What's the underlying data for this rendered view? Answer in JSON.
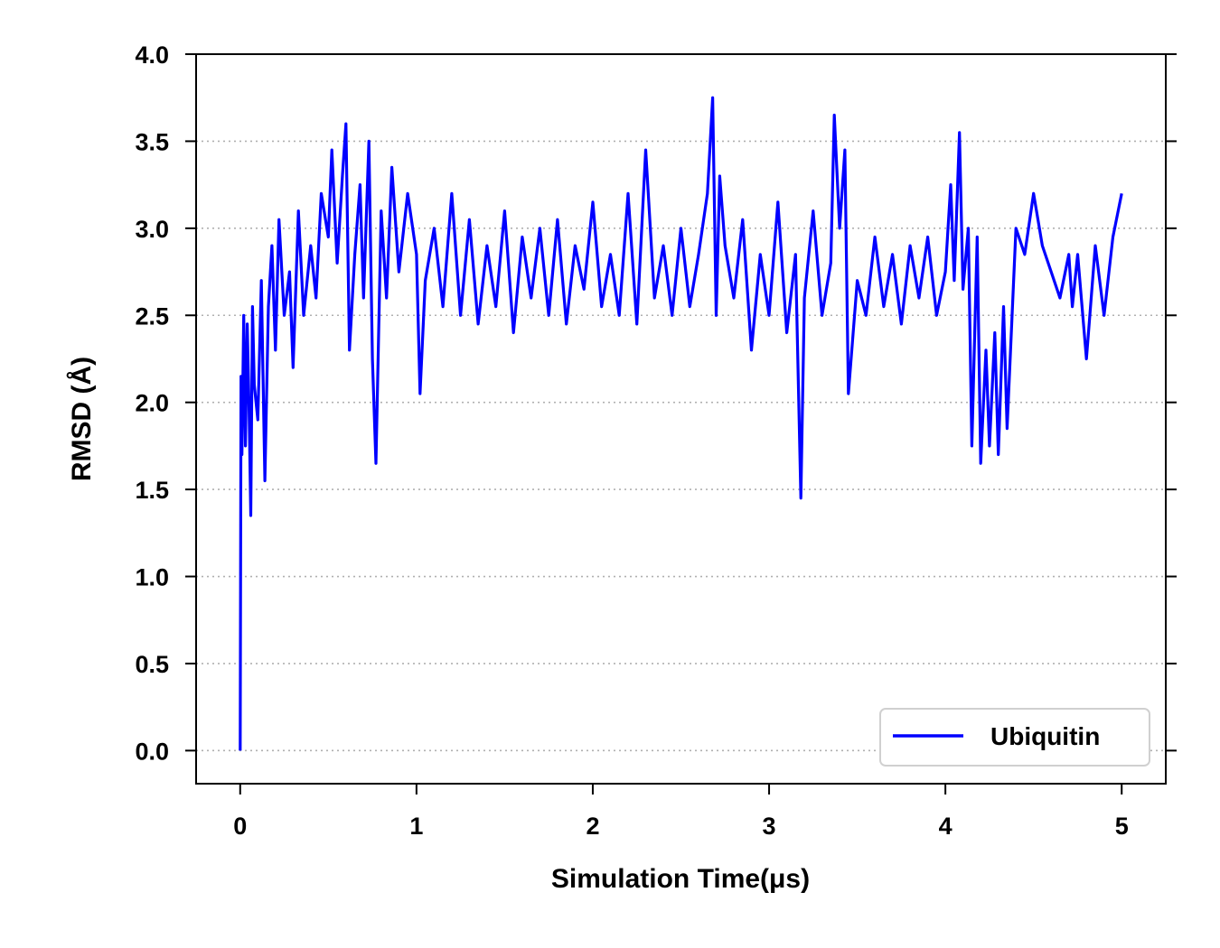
{
  "chart_data": {
    "type": "line",
    "title": "",
    "xlabel": "Simulation Time(μs)",
    "ylabel": "RMSD (Å)",
    "xlim": [
      -0.25,
      5.25
    ],
    "ylim": [
      -0.19,
      4.0
    ],
    "x_ticks": [
      0,
      1,
      2,
      3,
      4,
      5
    ],
    "x_tick_labels": [
      "0",
      "1",
      "2",
      "3",
      "4",
      "5"
    ],
    "y_ticks": [
      0.0,
      0.5,
      1.0,
      1.5,
      2.0,
      2.5,
      3.0,
      3.5,
      4.0
    ],
    "y_tick_labels": [
      "0.0",
      "0.5",
      "1.0",
      "1.5",
      "2.0",
      "2.5",
      "3.0",
      "3.5",
      "4.0"
    ],
    "grid": "y-dotted",
    "legend": {
      "position": "lower-right",
      "entries": [
        "Ubiquitin"
      ]
    },
    "series": [
      {
        "name": "Ubiquitin",
        "color": "#0000ff",
        "x": [
          0,
          0.005,
          0.01,
          0.02,
          0.03,
          0.04,
          0.05,
          0.06,
          0.07,
          0.08,
          0.1,
          0.12,
          0.14,
          0.16,
          0.18,
          0.2,
          0.22,
          0.25,
          0.28,
          0.3,
          0.33,
          0.36,
          0.4,
          0.43,
          0.46,
          0.5,
          0.52,
          0.55,
          0.58,
          0.6,
          0.62,
          0.65,
          0.68,
          0.7,
          0.73,
          0.75,
          0.77,
          0.8,
          0.83,
          0.86,
          0.9,
          0.95,
          1.0,
          1.02,
          1.05,
          1.1,
          1.15,
          1.2,
          1.25,
          1.3,
          1.35,
          1.4,
          1.45,
          1.5,
          1.55,
          1.6,
          1.65,
          1.7,
          1.75,
          1.8,
          1.85,
          1.9,
          1.95,
          2.0,
          2.05,
          2.1,
          2.15,
          2.2,
          2.25,
          2.3,
          2.35,
          2.4,
          2.45,
          2.5,
          2.55,
          2.6,
          2.65,
          2.68,
          2.7,
          2.72,
          2.75,
          2.8,
          2.85,
          2.9,
          2.95,
          3.0,
          3.05,
          3.1,
          3.15,
          3.18,
          3.2,
          3.25,
          3.3,
          3.35,
          3.37,
          3.4,
          3.43,
          3.45,
          3.5,
          3.55,
          3.6,
          3.65,
          3.7,
          3.75,
          3.8,
          3.85,
          3.9,
          3.95,
          4.0,
          4.03,
          4.05,
          4.08,
          4.1,
          4.13,
          4.15,
          4.18,
          4.2,
          4.23,
          4.25,
          4.28,
          4.3,
          4.33,
          4.35,
          4.4,
          4.45,
          4.5,
          4.55,
          4.6,
          4.65,
          4.7,
          4.72,
          4.75,
          4.8,
          4.85,
          4.9,
          4.95,
          5.0
        ],
        "y": [
          0.0,
          2.15,
          1.7,
          2.5,
          1.75,
          2.45,
          2.0,
          1.35,
          2.55,
          2.1,
          1.9,
          2.7,
          1.55,
          2.55,
          2.9,
          2.3,
          3.05,
          2.5,
          2.75,
          2.2,
          3.1,
          2.5,
          2.9,
          2.6,
          3.2,
          2.95,
          3.45,
          2.8,
          3.3,
          3.6,
          2.3,
          2.85,
          3.25,
          2.6,
          3.5,
          2.25,
          1.65,
          3.1,
          2.6,
          3.35,
          2.75,
          3.2,
          2.85,
          2.05,
          2.7,
          3.0,
          2.55,
          3.2,
          2.5,
          3.05,
          2.45,
          2.9,
          2.55,
          3.1,
          2.4,
          2.95,
          2.6,
          3.0,
          2.5,
          3.05,
          2.45,
          2.9,
          2.65,
          3.15,
          2.55,
          2.85,
          2.5,
          3.2,
          2.45,
          3.45,
          2.6,
          2.9,
          2.5,
          3.0,
          2.55,
          2.85,
          3.2,
          3.75,
          2.5,
          3.3,
          2.9,
          2.6,
          3.05,
          2.3,
          2.85,
          2.5,
          3.15,
          2.4,
          2.85,
          1.45,
          2.6,
          3.1,
          2.5,
          2.8,
          3.65,
          3.0,
          3.45,
          2.05,
          2.7,
          2.5,
          2.95,
          2.55,
          2.85,
          2.45,
          2.9,
          2.6,
          2.95,
          2.5,
          2.75,
          3.25,
          2.7,
          3.55,
          2.65,
          3.0,
          1.75,
          2.95,
          1.65,
          2.3,
          1.75,
          2.4,
          1.7,
          2.55,
          1.85,
          3.0,
          2.85,
          3.2,
          2.9,
          2.75,
          2.6,
          2.85,
          2.55,
          2.85,
          2.25,
          2.9,
          2.5,
          2.95,
          3.2
        ]
      }
    ]
  }
}
